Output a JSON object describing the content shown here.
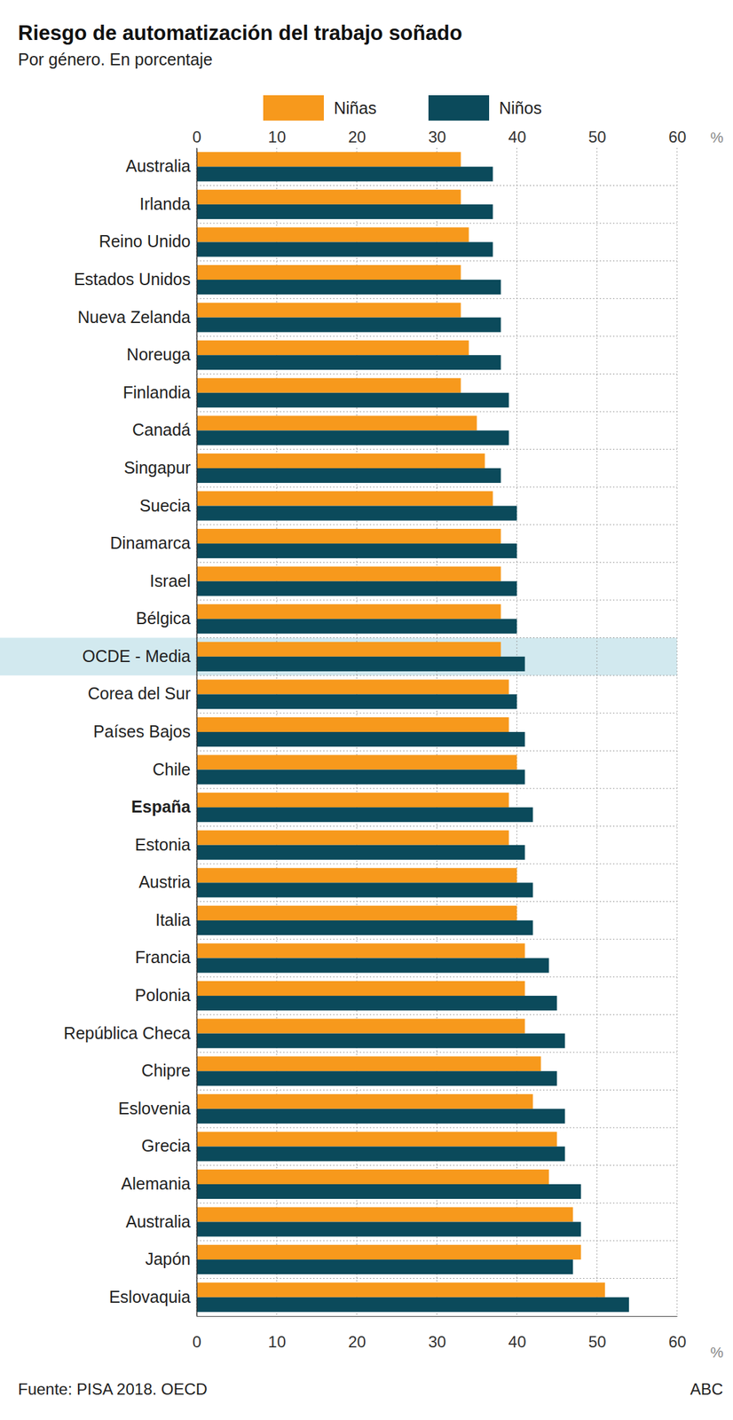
{
  "chart_data": {
    "type": "bar",
    "orientation": "horizontal",
    "title": "Riesgo de automatización del trabajo soñado",
    "subtitle": "Por género. En porcentaje",
    "x_label": "%",
    "source": "Fuente: PISA 2018. OECD",
    "credit": "ABC",
    "categories": [
      "Australia",
      "Irlanda",
      "Reino Unido",
      "Estados Unidos",
      "Nueva Zelanda",
      "Noreuga",
      "Finlandia",
      "Canadá",
      "Singapur",
      "Suecia",
      "Dinamarca",
      "Israel",
      "Bélgica",
      "OCDE - Media",
      "Corea del Sur",
      "Países Bajos",
      "Chile",
      "España",
      "Estonia",
      "Austria",
      "Italia",
      "Francia",
      "Polonia",
      "República Checa",
      "Chipre",
      "Eslovenia",
      "Grecia",
      "Alemania",
      "Australia",
      "Japón",
      "Eslovaquia"
    ],
    "series": [
      {
        "name": "Niñas",
        "color": "#f7991c",
        "values": [
          33,
          33,
          34,
          33,
          33,
          34,
          33,
          35,
          36,
          37,
          38,
          38,
          38,
          38,
          39,
          39,
          40,
          39,
          39,
          40,
          40,
          41,
          41,
          41,
          43,
          42,
          45,
          44,
          47,
          48,
          51
        ]
      },
      {
        "name": "Niños",
        "color": "#0b4a5b",
        "values": [
          37,
          37,
          37,
          38,
          38,
          38,
          39,
          39,
          38,
          40,
          40,
          40,
          40,
          41,
          40,
          41,
          41,
          42,
          41,
          42,
          42,
          44,
          45,
          46,
          45,
          46,
          46,
          48,
          48,
          47,
          54
        ]
      }
    ],
    "xlim": [
      0,
      60
    ],
    "xticks": [
      0,
      10,
      20,
      30,
      40,
      50,
      60
    ],
    "grid": true,
    "legend": "top"
  }
}
